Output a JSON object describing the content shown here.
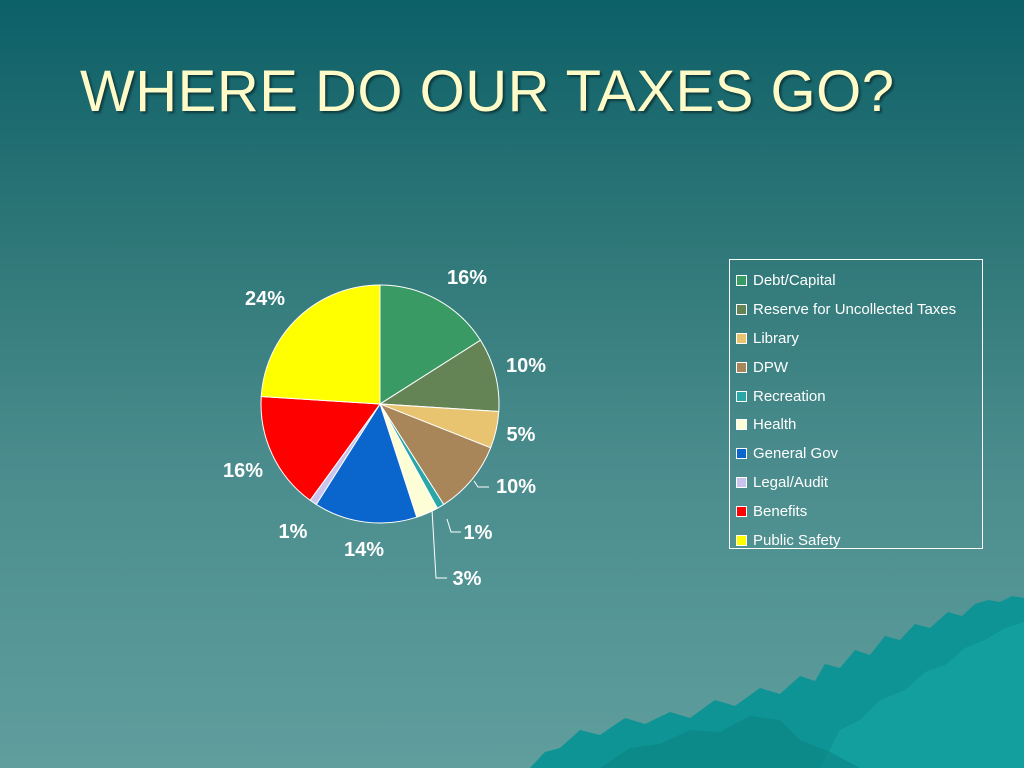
{
  "slide": {
    "title": "WHERE DO OUR TAXES GO?"
  },
  "chart_data": {
    "type": "pie",
    "title": "",
    "legend_position": "right",
    "slices": [
      {
        "name": "Debt/Capital",
        "value": 16,
        "label": "16%",
        "color": "#3a9a64"
      },
      {
        "name": "Reserve for Uncollected Taxes",
        "value": 10,
        "label": "10%",
        "color": "#648456"
      },
      {
        "name": "Library",
        "value": 5,
        "label": "5%",
        "color": "#e8c470"
      },
      {
        "name": "DPW",
        "value": 10,
        "label": "10%",
        "color": "#a8865a"
      },
      {
        "name": "Recreation",
        "value": 1,
        "label": "1%",
        "color": "#2aa6a6"
      },
      {
        "name": "Health",
        "value": 3,
        "label": "3%",
        "color": "#fdfdd6"
      },
      {
        "name": "General Gov",
        "value": 14,
        "label": "14%",
        "color": "#0a66cc"
      },
      {
        "name": "Legal/Audit",
        "value": 1,
        "label": "1%",
        "color": "#c8c4ee"
      },
      {
        "name": "Benefits",
        "value": 16,
        "label": "16%",
        "color": "#ff0000"
      },
      {
        "name": "Public Safety",
        "value": 24,
        "label": "24%",
        "color": "#ffff00"
      }
    ]
  }
}
